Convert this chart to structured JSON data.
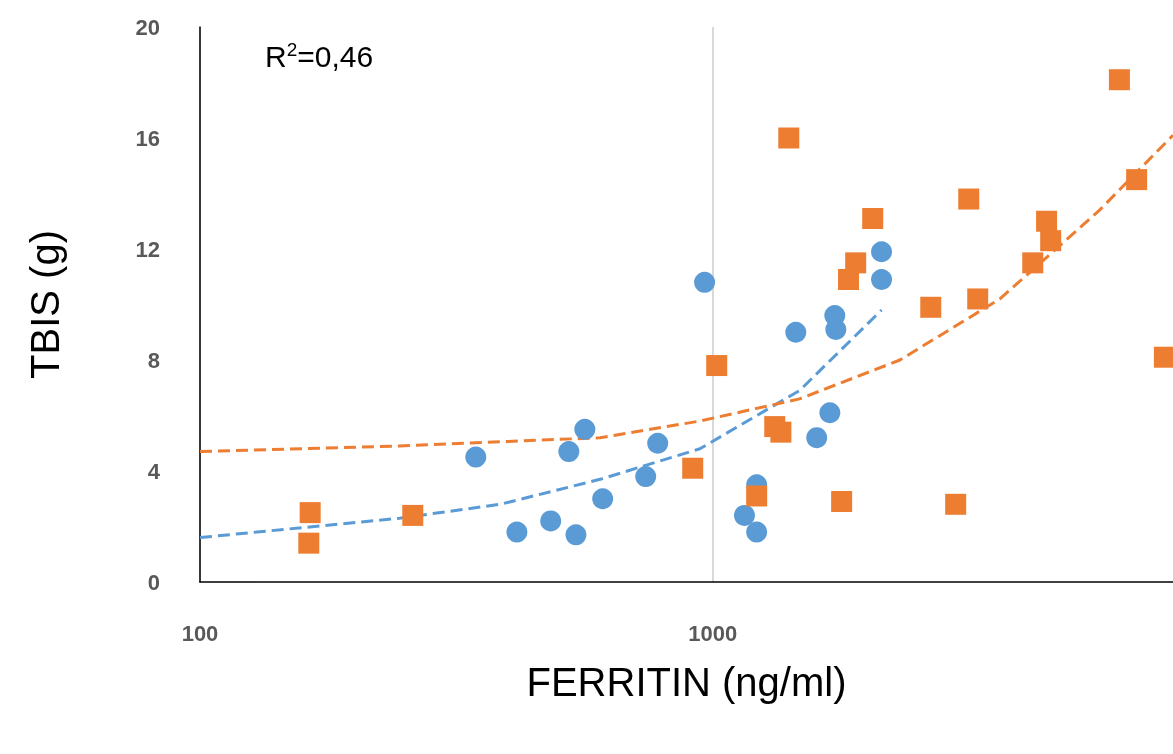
{
  "chart_data": {
    "type": "scatter",
    "xlabel": "FERRITIN (ng/ml)",
    "ylabel": "TBIS (g)",
    "log": "x",
    "xlim": [
      100,
      7900
    ],
    "xticks": [
      100,
      1000
    ],
    "ylim": [
      0,
      20
    ],
    "yticks": [
      0,
      4,
      8,
      12,
      16,
      20
    ],
    "grid": "x",
    "annotations": [
      "R$^{2}$=0,46"
    ],
    "series": [
      {
        "marker": "circle",
        "color": "#5b9bd5",
        "x": [
          415,
          483,
          541,
          345,
          524,
          563,
          610,
          740,
          781,
          964,
          1153,
          1218,
          1218,
          1452,
          1595,
          1692,
          1730,
          1738,
          2134,
          2134
        ],
        "values": [
          1.8,
          2.2,
          1.7,
          4.5,
          4.7,
          5.5,
          3.0,
          3.8,
          5.0,
          10.8,
          2.4,
          3.5,
          1.8,
          9.0,
          5.2,
          6.1,
          9.6,
          9.1,
          11.9,
          10.9
        ]
      },
      {
        "marker": "square",
        "color": "#ed7d31",
        "x": [
          164,
          163,
          260,
          914,
          1018,
          1218,
          1321,
          1358,
          1407,
          1784,
          1840,
          1900,
          2051,
          2662,
          2977,
          3157,
          3287,
          4208,
          4478,
          4561,
          6210,
          6710,
          7600
        ],
        "values": [
          2.5,
          1.4,
          2.4,
          4.1,
          7.8,
          3.1,
          5.6,
          5.4,
          16.0,
          2.9,
          10.9,
          11.5,
          13.1,
          9.9,
          2.8,
          13.8,
          10.2,
          11.5,
          13.0,
          12.3,
          18.1,
          14.5,
          8.1
        ]
      },
      {
        "type": "line",
        "marker": "none",
        "line_style": "dashed",
        "color": "#5b9bd5",
        "x": [
          100,
          245,
          385,
          603,
          944,
          1477,
          2134
        ],
        "values": [
          1.6,
          2.3,
          2.8,
          3.7,
          4.8,
          6.9,
          9.8
        ]
      },
      {
        "type": "line",
        "marker": "none",
        "line_style": "dashed",
        "color": "#ed7d31",
        "x": [
          100,
          245,
          603,
          944,
          1477,
          2317,
          3631,
          5680,
          7900
        ],
        "values": [
          4.7,
          4.9,
          5.2,
          5.8,
          6.6,
          8.0,
          10.2,
          13.4,
          16.1
        ]
      }
    ]
  }
}
